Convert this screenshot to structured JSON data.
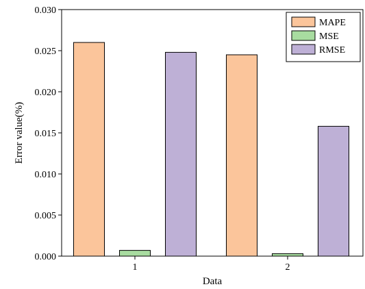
{
  "chart_data": {
    "type": "bar",
    "categories": [
      "1",
      "2"
    ],
    "series": [
      {
        "name": "MAPE",
        "values": [
          0.026,
          0.0245
        ],
        "color": "#fbc59b"
      },
      {
        "name": "MSE",
        "values": [
          0.0007,
          0.0003
        ],
        "color": "#a8dca0"
      },
      {
        "name": "RMSE",
        "values": [
          0.0248,
          0.0158
        ],
        "color": "#beb0d6"
      }
    ],
    "title": "",
    "xlabel": "Data",
    "ylabel": "Error value(%)",
    "ylim": [
      0,
      0.03
    ],
    "yticks": [
      "0.000",
      "0.005",
      "0.010",
      "0.015",
      "0.020",
      "0.025",
      "0.030"
    ],
    "grid": false,
    "legend_position": "top-right",
    "bar_edge_color": "#000000"
  }
}
